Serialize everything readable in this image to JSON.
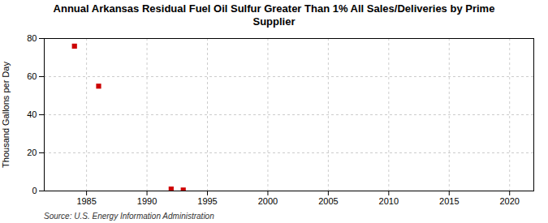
{
  "chart_data": {
    "type": "scatter",
    "title": "Annual Arkansas Residual Fuel Oil Sulfur Greater Than 1% All Sales/Deliveries by Prime\nSupplier",
    "ylabel": "Thousand Gallons per Day",
    "source": "Source: U.S. Energy Information Administration",
    "x": [
      1984,
      1986,
      1992,
      1993
    ],
    "values": [
      76,
      55,
      1,
      0.5
    ],
    "xlim": [
      1981.5,
      2022
    ],
    "ylim": [
      0,
      80
    ],
    "xticks": [
      1985,
      1990,
      1995,
      2000,
      2005,
      2010,
      2015,
      2020
    ],
    "yticks": [
      0,
      20,
      40,
      60,
      80
    ],
    "color": "#cc0000",
    "marker": "square",
    "grid": true
  }
}
